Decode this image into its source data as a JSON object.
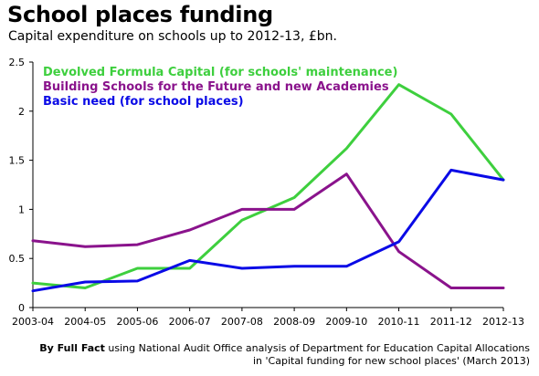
{
  "header": {
    "title": "School places funding",
    "subtitle": "Capital expenditure on schools up to 2012-13, £bn."
  },
  "footer": {
    "by": "By Full Fact",
    "line1": "using National Audit Office analysis of Department for Education Capital Allocations",
    "line2": "in 'Capital funding for new school places' (March 2013)"
  },
  "chart_data": {
    "type": "line",
    "title": "School places funding",
    "subtitle": "Capital expenditure on schools up to 2012-13, £bn.",
    "xlabel": "",
    "ylabel": "",
    "categories": [
      "2003-04",
      "2004-05",
      "2005-06",
      "2006-07",
      "2007-08",
      "2008-09",
      "2009-10",
      "2010-11",
      "2011-12",
      "2012-13"
    ],
    "ylim": [
      0,
      2.5
    ],
    "yticks": [
      "0",
      "0.5",
      "1",
      "1.5",
      "2",
      "2.5"
    ],
    "grid": false,
    "legend_position": "top-left",
    "series": [
      {
        "name": "Devolved Formula Capital (for schools' maintenance)",
        "color": "#3ecf3e",
        "values": [
          0.25,
          0.2,
          0.4,
          0.4,
          0.89,
          1.12,
          1.62,
          2.27,
          1.97,
          1.3
        ]
      },
      {
        "name": "Building Schools for the Future and new Academies",
        "color": "#8a138c",
        "values": [
          0.68,
          0.62,
          0.64,
          0.79,
          1.0,
          1.0,
          1.36,
          0.57,
          0.2,
          0.2
        ]
      },
      {
        "name": "Basic need (for school places)",
        "color": "#0a0ae6",
        "values": [
          0.17,
          0.26,
          0.27,
          0.48,
          0.4,
          0.42,
          0.42,
          0.67,
          1.4,
          1.3
        ]
      }
    ]
  }
}
